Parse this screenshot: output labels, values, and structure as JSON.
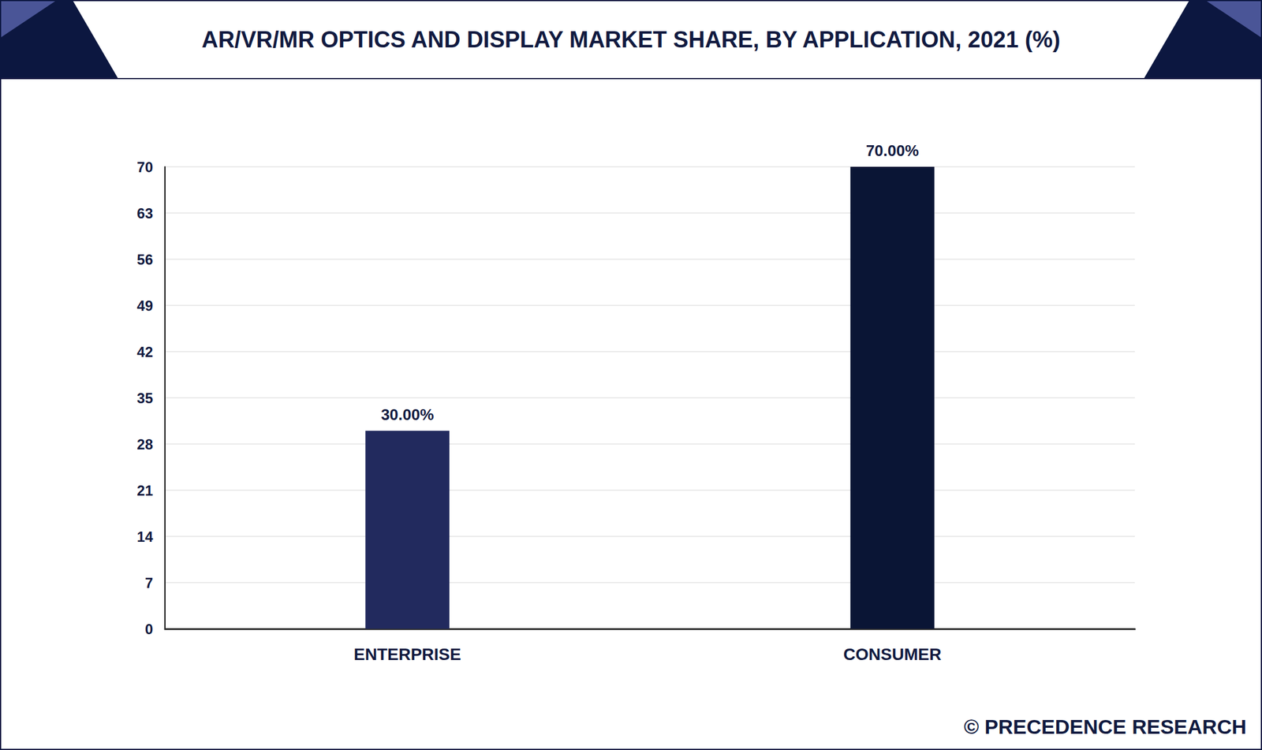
{
  "chart_data": {
    "type": "bar",
    "title": "AR/VR/MR OPTICS AND DISPLAY MARKET SHARE, BY APPLICATION, 2021 (%)",
    "categories": [
      "ENTERPRISE",
      "CONSUMER"
    ],
    "values": [
      30,
      70
    ],
    "value_labels": [
      "30.00%",
      "70.00%"
    ],
    "colors": [
      "#222a5e",
      "#0a1535"
    ],
    "ylim": [
      0,
      70
    ],
    "yticks": [
      0,
      7,
      14,
      21,
      28,
      35,
      42,
      49,
      56,
      63,
      70
    ],
    "grid": true,
    "data_labels": true,
    "source": "© PRECEDENCE RESEARCH"
  }
}
